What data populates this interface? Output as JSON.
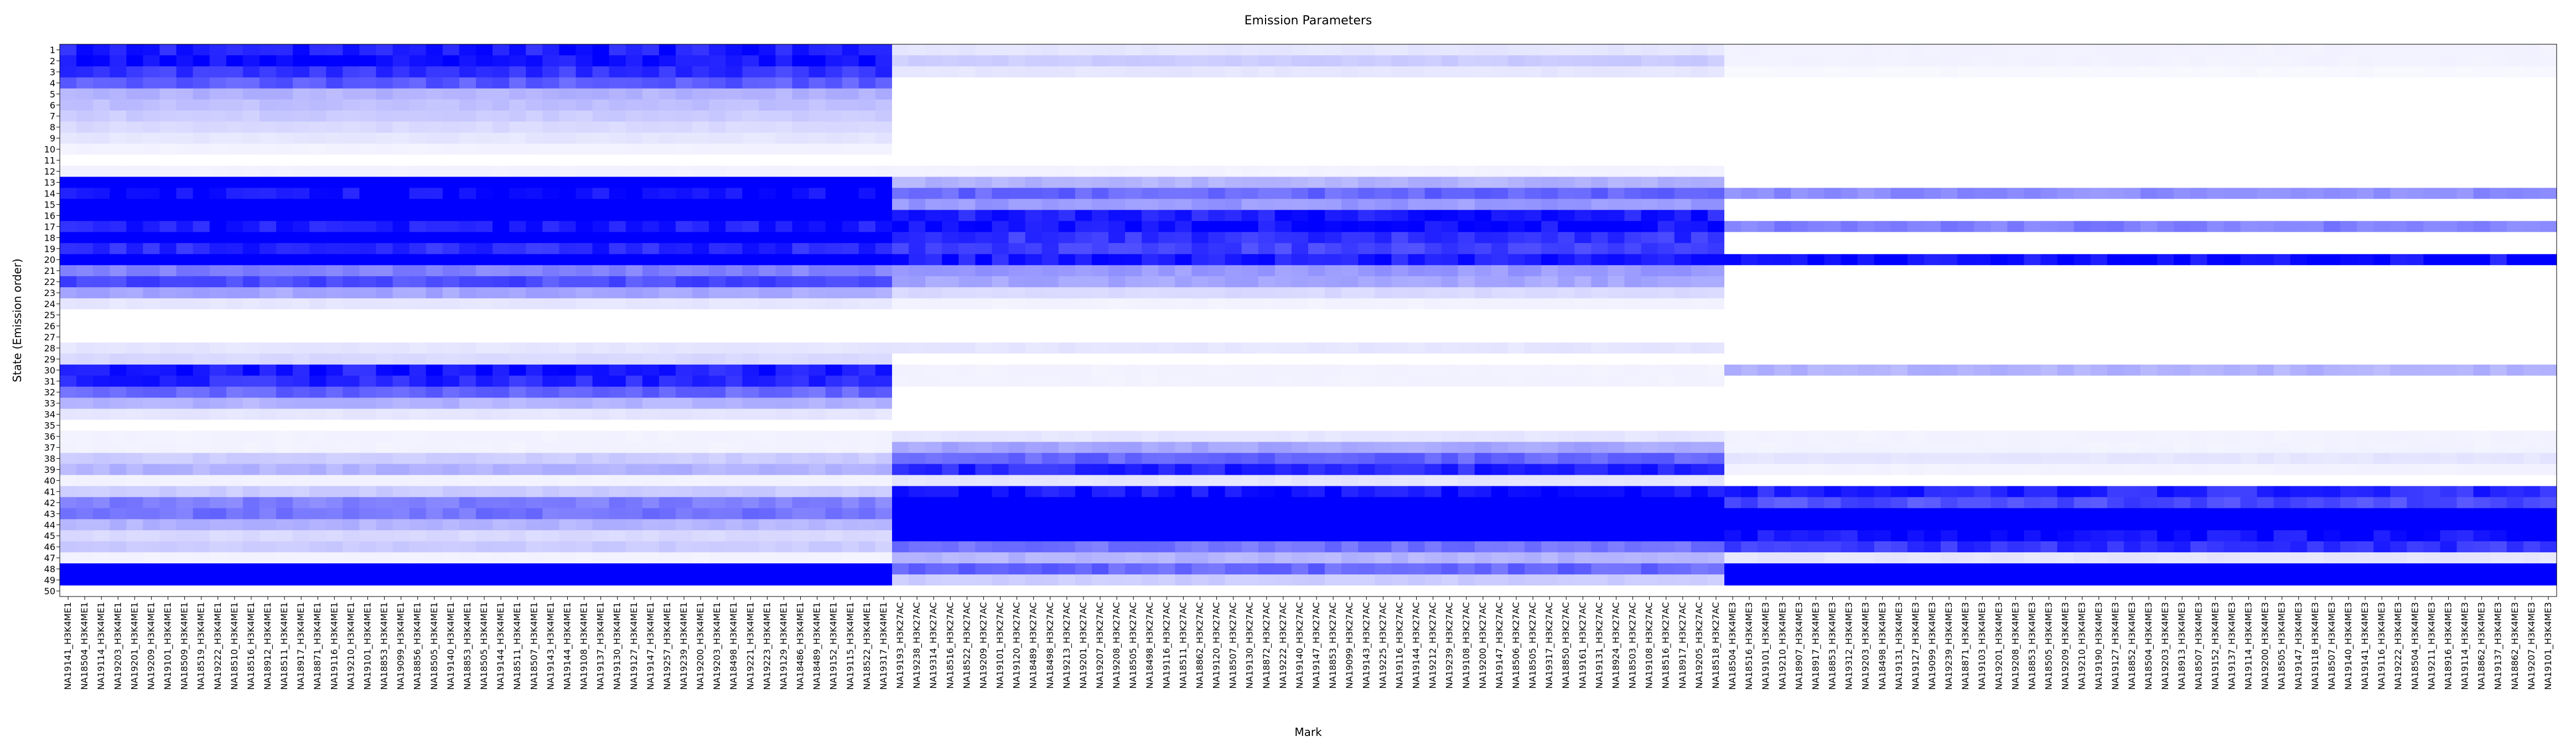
{
  "chart_data": {
    "type": "heatmap",
    "title": "Emission Parameters",
    "xlabel": "Mark",
    "ylabel": "State (Emission order)",
    "colormap": {
      "low": "#ffffff",
      "high": "#0000ff"
    },
    "value_range": [
      0,
      1
    ],
    "y_categories": [
      "1",
      "2",
      "3",
      "4",
      "5",
      "6",
      "7",
      "8",
      "9",
      "10",
      "11",
      "12",
      "13",
      "14",
      "15",
      "16",
      "17",
      "18",
      "19",
      "20",
      "21",
      "22",
      "23",
      "24",
      "25",
      "26",
      "27",
      "28",
      "29",
      "30",
      "31",
      "32",
      "33",
      "34",
      "35",
      "36",
      "37",
      "38",
      "39",
      "40",
      "41",
      "42",
      "43",
      "44",
      "45",
      "46",
      "47",
      "48",
      "49",
      "50"
    ],
    "groups": [
      {
        "mark": "H3K4ME1",
        "samples": [
          "NA19141",
          "NA18504",
          "NA19114",
          "NA19203",
          "NA19201",
          "NA19209",
          "NA19101",
          "NA18509",
          "NA18519",
          "NA19222",
          "NA18510",
          "NA18516",
          "NA18912",
          "NA18511",
          "NA18917",
          "NA18871",
          "NA19116",
          "NA19210",
          "NA19101",
          "NA18853",
          "NA19099",
          "NA18856",
          "NA18505",
          "NA19140",
          "NA18853",
          "NA18505",
          "NA19144",
          "NA18511",
          "NA18507",
          "NA19143",
          "NA19144",
          "NA19108",
          "NA19137",
          "NA19130",
          "NA19127",
          "NA19147",
          "NA19257",
          "NA19239",
          "NA19200",
          "NA19203",
          "NA18498",
          "NA19221",
          "NA19223",
          "NA19129",
          "NA18486",
          "NA18489",
          "NA19152",
          "NA19115",
          "NA18522",
          "NA19317"
        ],
        "states": {
          "1": 0.9,
          "2": 0.95,
          "3": 0.8,
          "4": 0.65,
          "5": 0.3,
          "6": 0.25,
          "7": 0.2,
          "8": 0.15,
          "9": 0.1,
          "10": 0.05,
          "11": 0,
          "12": 0.05,
          "13": 1,
          "14": 0.95,
          "15": 1,
          "16": 1,
          "17": 0.9,
          "18": 1,
          "19": 0.85,
          "20": 1,
          "21": 0.5,
          "22": 0.7,
          "23": 0.35,
          "24": 0.1,
          "25": 0,
          "26": 0,
          "27": 0,
          "28": 0.1,
          "29": 0.15,
          "30": 0.9,
          "31": 0.85,
          "32": 0.6,
          "33": 0.3,
          "34": 0.1,
          "35": 0,
          "36": 0.05,
          "37": 0.05,
          "38": 0.2,
          "39": 0.3,
          "40": 0.05,
          "41": 0.2,
          "42": 0.5,
          "43": 0.55,
          "44": 0.3,
          "45": 0.15,
          "46": 0.2,
          "47": 0.05,
          "48": 1,
          "49": 1,
          "50": 0
        }
      },
      {
        "mark": "H3K27AC",
        "samples": [
          "NA19193",
          "NA19238",
          "NA19314",
          "NA18516",
          "NA18522",
          "NA19209",
          "NA19101",
          "NA19120",
          "NA18489",
          "NA18498",
          "NA19213",
          "NA19201",
          "NA19207",
          "NA19208",
          "NA18505",
          "NA18498",
          "NA19116",
          "NA18511",
          "NA18862",
          "NA19120",
          "NA18507",
          "NA19130",
          "NA18872",
          "NA19222",
          "NA19140",
          "NA19147",
          "NA18853",
          "NA19099",
          "NA19143",
          "NA19225",
          "NA19116",
          "NA19144",
          "NA19212",
          "NA19239",
          "NA19108",
          "NA19200",
          "NA19147",
          "NA18506",
          "NA18505",
          "NA19317",
          "NA18850",
          "NA19161",
          "NA19131",
          "NA18924",
          "NA18503",
          "NA19108",
          "NA18516",
          "NA18917",
          "NA19205",
          "NA18518"
        ],
        "states": {
          "1": 0.1,
          "2": 0.2,
          "3": 0.1,
          "4": 0,
          "5": 0,
          "6": 0,
          "7": 0,
          "8": 0,
          "9": 0,
          "10": 0,
          "11": 0,
          "12": 0.05,
          "13": 0.3,
          "14": 0.6,
          "15": 0.4,
          "16": 0.9,
          "17": 0.95,
          "18": 0.8,
          "19": 0.75,
          "20": 0.9,
          "21": 0.4,
          "22": 0.35,
          "23": 0.15,
          "24": 0.05,
          "25": 0,
          "26": 0,
          "27": 0,
          "28": 0.1,
          "29": 0,
          "30": 0.05,
          "31": 0.05,
          "32": 0,
          "33": 0,
          "34": 0,
          "35": 0,
          "36": 0.1,
          "37": 0.35,
          "38": 0.6,
          "39": 0.85,
          "40": 0.1,
          "41": 0.95,
          "42": 1,
          "43": 1,
          "44": 1,
          "45": 1,
          "46": 0.55,
          "47": 0.3,
          "48": 0.6,
          "49": 0.2,
          "50": 0
        }
      },
      {
        "mark": "H3K4ME3",
        "samples": [
          "NA18504",
          "NA18516",
          "NA19101",
          "NA19210",
          "NA18907",
          "NA18917",
          "NA18853",
          "NA19312",
          "NA19203",
          "NA18498",
          "NA19131",
          "NA19127",
          "NA19099",
          "NA19239",
          "NA18871",
          "NA19103",
          "NA19201",
          "NA19208",
          "NA18853",
          "NA18505",
          "NA19209",
          "NA19210",
          "NA19190",
          "NA19127",
          "NA18852",
          "NA18504",
          "NA19203",
          "NA18913",
          "NA18507",
          "NA19152",
          "NA19137",
          "NA19114",
          "NA19200",
          "NA18505",
          "NA19147",
          "NA19118",
          "NA18507",
          "NA19140",
          "NA19141",
          "NA19116",
          "NA19222",
          "NA18504",
          "NA19211",
          "NA18916",
          "NA19114",
          "NA18862",
          "NA19137",
          "NA18862",
          "NA19207",
          "NA19101"
        ],
        "states": {
          "1": 0.05,
          "2": 0.05,
          "3": 0.03,
          "4": 0,
          "5": 0,
          "6": 0,
          "7": 0,
          "8": 0,
          "9": 0,
          "10": 0,
          "11": 0,
          "12": 0,
          "13": 0,
          "14": 0.45,
          "15": 0,
          "16": 0,
          "17": 0.5,
          "18": 0,
          "19": 0,
          "20": 0.95,
          "21": 0,
          "22": 0,
          "23": 0,
          "24": 0,
          "25": 0,
          "26": 0,
          "27": 0,
          "28": 0,
          "29": 0,
          "30": 0.3,
          "31": 0,
          "32": 0,
          "33": 0,
          "34": 0,
          "35": 0,
          "36": 0.05,
          "37": 0.05,
          "38": 0.1,
          "39": 0.05,
          "40": 0,
          "41": 0.85,
          "42": 0.7,
          "43": 1,
          "44": 1,
          "45": 0.95,
          "46": 0.8,
          "47": 0.1,
          "48": 1,
          "49": 1,
          "50": 0
        }
      }
    ]
  }
}
